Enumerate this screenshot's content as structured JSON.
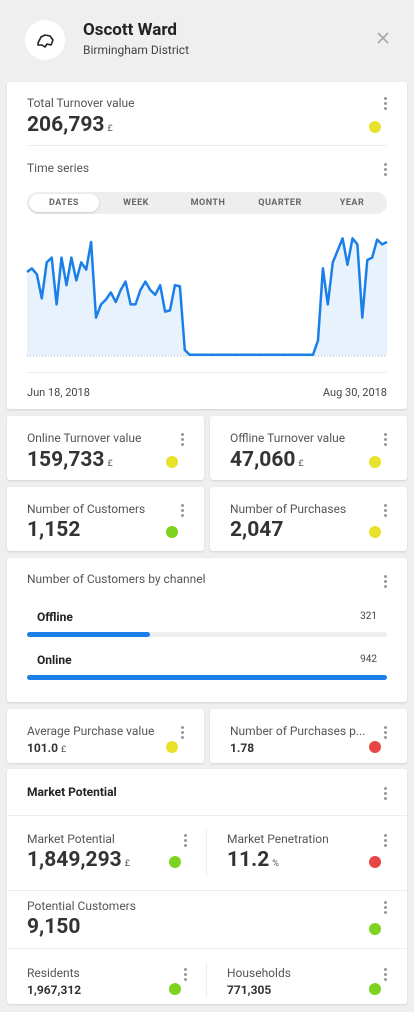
{
  "header": {
    "title": "Oscott Ward",
    "subtitle": "Birmingham District"
  },
  "total_turnover": {
    "label": "Total Turnover value",
    "value": "206,793",
    "unit": "£",
    "status_color": "#e8e22c"
  },
  "time_series": {
    "label": "Time series",
    "tabs": [
      "DATES",
      "WEEK",
      "MONTH",
      "QUARTER",
      "YEAR"
    ],
    "selected_tab": 0,
    "chart": {
      "type": "line",
      "x_start_label": "Jun 18, 2018",
      "x_end_label": "Aug 30, 2018",
      "ylim": [
        0,
        100
      ],
      "color": "#1a7fe8",
      "values": [
        70,
        73,
        68,
        48,
        78,
        82,
        43,
        82,
        59,
        82,
        63,
        78,
        72,
        95,
        32,
        43,
        47,
        53,
        45,
        55,
        62,
        43,
        43,
        55,
        62,
        55,
        51,
        59,
        37,
        38,
        59,
        58,
        5,
        1,
        1,
        1,
        1,
        1,
        1,
        1,
        1,
        1,
        1,
        1,
        1,
        1,
        1,
        1,
        1,
        1,
        1,
        1,
        1,
        1,
        1,
        1,
        1,
        1,
        1,
        13,
        73,
        43,
        78,
        88,
        98,
        76,
        98,
        93,
        32,
        80,
        82,
        97,
        93,
        95
      ]
    }
  },
  "metrics": [
    {
      "label": "Online Turnover value",
      "value": "159,733",
      "unit": "£",
      "status_color": "#e8e22c"
    },
    {
      "label": "Offline Turnover value",
      "value": "47,060",
      "unit": "£",
      "status_color": "#e8e22c"
    },
    {
      "label": "Number of Customers",
      "value": "1,152",
      "status_color": "#7ed321"
    },
    {
      "label": "Number of Purchases",
      "value": "2,047",
      "status_color": "#e8e22c"
    },
    {
      "label": "Average Purchase value",
      "value": "101.0",
      "unit": "£",
      "status_color": "#e8e22c"
    },
    {
      "label": "Number of Purchases p...",
      "value": "1.78",
      "status_color": "#e84545"
    },
    {
      "label": "Market Potential",
      "value": "1,849,293",
      "unit": "£",
      "status_color": "#7ed321"
    },
    {
      "label": "Market Penetration",
      "value": "11.2",
      "unit": "%",
      "status_color": "#e84545"
    },
    {
      "label": "Potential Customers",
      "value": "9,150",
      "status_color": "#7ed321"
    },
    {
      "label": "Residents",
      "value": "1,967,312",
      "status_color": "#7ed321"
    },
    {
      "label": "Households",
      "value": "771,305",
      "status_color": "#7ed321"
    }
  ],
  "channels": {
    "label": "Number of Customers by channel",
    "color": "#1a7fe8",
    "items": [
      {
        "name": "Offline",
        "value": 321
      },
      {
        "name": "Online",
        "value": 942
      }
    ]
  },
  "market": {
    "title": "Market Potential"
  }
}
